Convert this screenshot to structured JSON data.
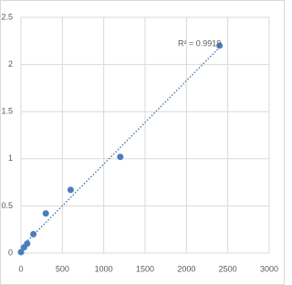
{
  "chart_data": {
    "type": "scatter",
    "x": [
      0,
      37.5,
      75,
      150,
      300,
      600,
      1200,
      2400
    ],
    "values": [
      0.01,
      0.06,
      0.1,
      0.2,
      0.42,
      0.67,
      1.02,
      2.2
    ],
    "color": "#4a7ebb",
    "xlim": [
      0,
      3000
    ],
    "xticks": [
      0,
      500,
      1000,
      1500,
      2000,
      2500,
      3000
    ],
    "ylim": [
      0,
      2.5
    ],
    "yticks": [
      0,
      0.5,
      1,
      1.5,
      2,
      2.5
    ],
    "grid": true,
    "trendline": true,
    "annotation": "R² = 0.9919"
  }
}
